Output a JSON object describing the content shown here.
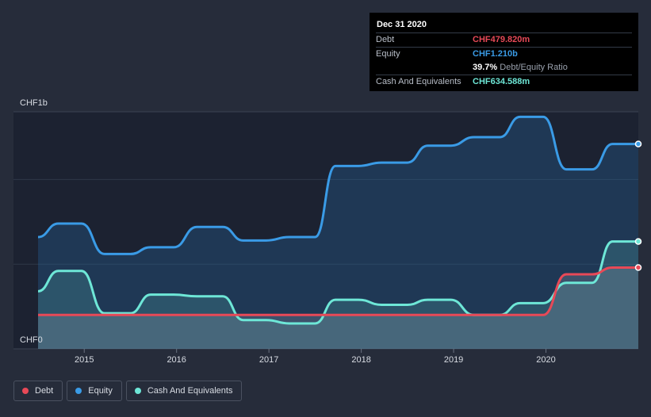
{
  "tooltip": {
    "date": "Dec 31 2020",
    "rows": [
      {
        "label": "Debt",
        "value": "CHF479.820m",
        "color": "#e84957"
      },
      {
        "label": "Equity",
        "value": "CHF1.210b",
        "color": "#3a9be6"
      },
      {
        "label": "",
        "value": "39.7%",
        "sub": "Debt/Equity Ratio",
        "color": "#ffffff"
      },
      {
        "label": "Cash And Equivalents",
        "value": "CHF634.588m",
        "color": "#6ee7d7"
      }
    ]
  },
  "legend": [
    {
      "label": "Debt",
      "color": "#e84957"
    },
    {
      "label": "Equity",
      "color": "#3a9be6"
    },
    {
      "label": "Cash And Equivalents",
      "color": "#6ee7d7"
    }
  ],
  "chart_data": {
    "type": "area",
    "y_top_label": "CHF1b",
    "y_bottom_label": "CHF0",
    "ylim": [
      0,
      1.4
    ],
    "xlim": [
      2014.5,
      2021.0
    ],
    "x_ticks": [
      "2015",
      "2016",
      "2017",
      "2018",
      "2019",
      "2020"
    ],
    "series": [
      {
        "name": "Equity",
        "color": "#3a9be6",
        "x": [
          2014.5,
          2014.72,
          2014.97,
          2015.22,
          2015.5,
          2015.72,
          2015.97,
          2016.22,
          2016.5,
          2016.72,
          2016.97,
          2017.22,
          2017.5,
          2017.72,
          2017.97,
          2018.22,
          2018.5,
          2018.72,
          2018.97,
          2019.22,
          2019.5,
          2019.72,
          2019.97,
          2020.22,
          2020.5,
          2020.72,
          2021.0
        ],
        "y": [
          0.66,
          0.74,
          0.74,
          0.56,
          0.56,
          0.6,
          0.6,
          0.72,
          0.72,
          0.64,
          0.64,
          0.66,
          0.66,
          1.08,
          1.08,
          1.1,
          1.1,
          1.2,
          1.2,
          1.25,
          1.25,
          1.37,
          1.37,
          1.06,
          1.06,
          1.21,
          1.21
        ]
      },
      {
        "name": "Cash And Equivalents",
        "color": "#6ee7d7",
        "x": [
          2014.5,
          2014.72,
          2014.97,
          2015.22,
          2015.5,
          2015.72,
          2015.97,
          2016.22,
          2016.5,
          2016.72,
          2016.97,
          2017.22,
          2017.5,
          2017.72,
          2017.97,
          2018.22,
          2018.5,
          2018.72,
          2018.97,
          2019.22,
          2019.5,
          2019.72,
          2019.97,
          2020.22,
          2020.5,
          2020.72,
          2021.0
        ],
        "y": [
          0.34,
          0.46,
          0.46,
          0.21,
          0.21,
          0.32,
          0.32,
          0.31,
          0.31,
          0.17,
          0.17,
          0.15,
          0.15,
          0.29,
          0.29,
          0.26,
          0.26,
          0.29,
          0.29,
          0.2,
          0.2,
          0.27,
          0.27,
          0.39,
          0.39,
          0.634,
          0.634
        ]
      },
      {
        "name": "Debt",
        "color": "#e84957",
        "x": [
          2014.5,
          2014.72,
          2014.97,
          2015.22,
          2015.5,
          2015.72,
          2015.97,
          2016.22,
          2016.5,
          2016.72,
          2016.97,
          2017.22,
          2017.5,
          2017.72,
          2017.97,
          2018.22,
          2018.5,
          2018.72,
          2018.97,
          2019.22,
          2019.5,
          2019.72,
          2019.97,
          2020.22,
          2020.5,
          2020.72,
          2021.0
        ],
        "y": [
          0.2,
          0.2,
          0.2,
          0.2,
          0.2,
          0.2,
          0.2,
          0.2,
          0.2,
          0.2,
          0.2,
          0.2,
          0.2,
          0.2,
          0.2,
          0.2,
          0.2,
          0.2,
          0.2,
          0.2,
          0.2,
          0.2,
          0.2,
          0.44,
          0.44,
          0.48,
          0.48
        ]
      }
    ]
  }
}
